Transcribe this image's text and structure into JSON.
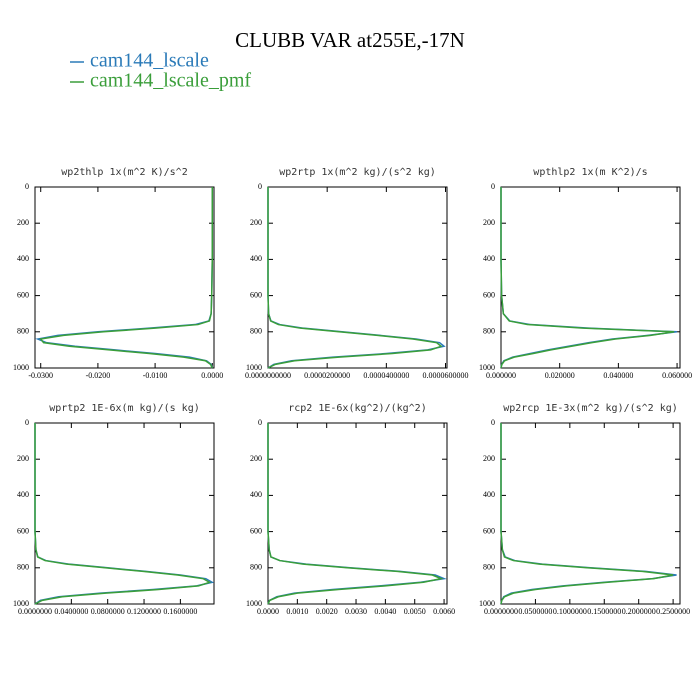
{
  "title": "CLUBB VAR at255E,-17N",
  "chart_data": [
    {
      "type": "line",
      "title": "wp2thlp  1x(m^2 K)/s^2",
      "y": [
        0,
        200,
        400,
        600,
        700,
        740,
        760,
        780,
        800,
        820,
        840,
        860,
        880,
        900,
        920,
        940,
        960,
        980,
        1000
      ],
      "ylim": [
        0,
        1000
      ],
      "y_inverted": true,
      "yticks": [
        0,
        200,
        400,
        600,
        800,
        1000
      ],
      "xlim": [
        -0.031,
        0.0003
      ],
      "xticks": [
        {
          "value": -0.03,
          "label": "-0.0300"
        },
        {
          "value": -0.02,
          "label": "-0.0200"
        },
        {
          "value": -0.01,
          "label": "-0.0100"
        },
        {
          "value": 0,
          "label": "0.0000"
        }
      ],
      "series": [
        {
          "name": "cam144_lscale",
          "color": "#2a7ab8",
          "values": [
            0,
            0,
            0,
            -0.0001,
            -0.0002,
            -0.0006,
            -0.003,
            -0.011,
            -0.02,
            -0.027,
            -0.0305,
            -0.029,
            -0.024,
            -0.017,
            -0.01,
            -0.004,
            -0.001,
            -0.0002,
            0
          ]
        },
        {
          "name": "cam144_lscale_pmf",
          "color": "#3a9e3a",
          "values": [
            0,
            0,
            0,
            -0.0001,
            -0.0002,
            -0.0005,
            -0.0025,
            -0.01,
            -0.019,
            -0.026,
            -0.03,
            -0.0295,
            -0.025,
            -0.018,
            -0.011,
            -0.005,
            -0.0012,
            -0.0003,
            0
          ]
        }
      ]
    },
    {
      "type": "line",
      "title": "wp2rtp  1x(m^2 kg)/(s^2 kg)",
      "y": [
        0,
        200,
        400,
        600,
        700,
        740,
        760,
        780,
        800,
        820,
        840,
        860,
        880,
        900,
        920,
        940,
        960,
        980,
        1000
      ],
      "ylim": [
        0,
        1000
      ],
      "y_inverted": true,
      "yticks": [
        0,
        200,
        400,
        600,
        800,
        1000
      ],
      "xlim": [
        0,
        6.05e-05
      ],
      "xticks": [
        {
          "value": 0,
          "label": "0.0000000000"
        },
        {
          "value": 2e-05,
          "label": "0.0000200000"
        },
        {
          "value": 4e-05,
          "label": "0.0000400000"
        },
        {
          "value": 6e-05,
          "label": "0.0000600000"
        }
      ],
      "series": [
        {
          "name": "cam144_lscale",
          "color": "#2a7ab8",
          "values": [
            0,
            0,
            0,
            0,
            2e-07,
            1e-06,
            4e-06,
            1.2e-05,
            2.5e-05,
            3.8e-05,
            5e-05,
            5.8e-05,
            5.95e-05,
            5.4e-05,
            4e-05,
            2.2e-05,
            8e-06,
            2e-06,
            0
          ]
        },
        {
          "name": "cam144_lscale_pmf",
          "color": "#3a9e3a",
          "values": [
            0,
            0,
            0,
            0,
            2e-07,
            9e-07,
            3.5e-06,
            1.1e-05,
            2.4e-05,
            3.7e-05,
            4.9e-05,
            5.7e-05,
            5.85e-05,
            5.5e-05,
            4.2e-05,
            2.4e-05,
            9e-06,
            2.5e-06,
            0
          ]
        }
      ]
    },
    {
      "type": "line",
      "title": "wpthlp2  1x(m K^2)/s",
      "y": [
        0,
        200,
        400,
        600,
        700,
        740,
        760,
        780,
        800,
        820,
        840,
        860,
        880,
        900,
        920,
        940,
        960,
        980,
        1000
      ],
      "ylim": [
        0,
        1000
      ],
      "y_inverted": true,
      "yticks": [
        0,
        200,
        400,
        600,
        800,
        1000
      ],
      "xlim": [
        0,
        0.061
      ],
      "xticks": [
        {
          "value": 0,
          "label": "0.000000"
        },
        {
          "value": 0.02,
          "label": "0.020000"
        },
        {
          "value": 0.04,
          "label": "0.040000"
        },
        {
          "value": 0.06,
          "label": "0.060000"
        }
      ],
      "series": [
        {
          "name": "cam144_lscale",
          "color": "#2a7ab8",
          "values": [
            0,
            0,
            0,
            0.0002,
            0.0008,
            0.003,
            0.01,
            0.03,
            0.06,
            0.05,
            0.038,
            0.03,
            0.023,
            0.016,
            0.01,
            0.004,
            0.001,
            0.0002,
            0
          ]
        },
        {
          "name": "cam144_lscale_pmf",
          "color": "#3a9e3a",
          "values": [
            0,
            0,
            0,
            0.0002,
            0.0008,
            0.0028,
            0.009,
            0.028,
            0.059,
            0.051,
            0.039,
            0.031,
            0.024,
            0.017,
            0.011,
            0.0045,
            0.0012,
            0.0003,
            0
          ]
        }
      ]
    },
    {
      "type": "line",
      "title": "wprtp2  1E-6x(m kg)/(s kg)",
      "y": [
        0,
        200,
        400,
        600,
        700,
        740,
        760,
        780,
        800,
        820,
        840,
        860,
        880,
        900,
        920,
        940,
        960,
        980,
        1000
      ],
      "ylim": [
        0,
        1000
      ],
      "y_inverted": true,
      "yticks": [
        0,
        200,
        400,
        600,
        800,
        1000
      ],
      "xlim": [
        0,
        0.197
      ],
      "xticks": [
        {
          "value": 0,
          "label": "0.0000000"
        },
        {
          "value": 0.04,
          "label": "0.0400000"
        },
        {
          "value": 0.08,
          "label": "0.0800000"
        },
        {
          "value": 0.12,
          "label": "0.1200000"
        },
        {
          "value": 0.16,
          "label": "0.1600000"
        }
      ],
      "series": [
        {
          "name": "cam144_lscale",
          "color": "#2a7ab8",
          "values": [
            0,
            0,
            0,
            0,
            0.001,
            0.003,
            0.012,
            0.038,
            0.08,
            0.122,
            0.16,
            0.188,
            0.195,
            0.178,
            0.13,
            0.072,
            0.026,
            0.006,
            0
          ]
        },
        {
          "name": "cam144_lscale_pmf",
          "color": "#3a9e3a",
          "values": [
            0,
            0,
            0,
            0,
            0.001,
            0.003,
            0.011,
            0.035,
            0.077,
            0.119,
            0.157,
            0.185,
            0.192,
            0.18,
            0.136,
            0.078,
            0.03,
            0.008,
            0
          ]
        }
      ]
    },
    {
      "type": "line",
      "title": "rcp2  1E-6x(kg^2)/(kg^2)",
      "y": [
        0,
        200,
        400,
        600,
        700,
        740,
        760,
        780,
        800,
        820,
        840,
        860,
        880,
        900,
        920,
        940,
        960,
        980,
        1000
      ],
      "ylim": [
        0,
        1000
      ],
      "y_inverted": true,
      "yticks": [
        0,
        200,
        400,
        600,
        800,
        1000
      ],
      "xlim": [
        0,
        0.0061
      ],
      "xticks": [
        {
          "value": 0,
          "label": "0.0000"
        },
        {
          "value": 0.001,
          "label": "0.0010"
        },
        {
          "value": 0.002,
          "label": "0.0020"
        },
        {
          "value": 0.003,
          "label": "0.0030"
        },
        {
          "value": 0.004,
          "label": "0.0040"
        },
        {
          "value": 0.005,
          "label": "0.0050"
        },
        {
          "value": 0.006,
          "label": "0.0060"
        }
      ],
      "series": [
        {
          "name": "cam144_lscale",
          "color": "#2a7ab8",
          "values": [
            0,
            0,
            0,
            0,
            4e-05,
            0.0001,
            0.0004,
            0.0013,
            0.0028,
            0.0045,
            0.0057,
            0.006,
            0.0052,
            0.0038,
            0.0022,
            0.0009,
            0.0003,
            5e-05,
            0
          ]
        },
        {
          "name": "cam144_lscale_pmf",
          "color": "#3a9e3a",
          "values": [
            0,
            0,
            0,
            0,
            4e-05,
            0.0001,
            0.0004,
            0.0012,
            0.0027,
            0.0044,
            0.0056,
            0.0059,
            0.0053,
            0.004,
            0.0024,
            0.001,
            0.00035,
            6e-05,
            0
          ]
        }
      ]
    },
    {
      "type": "line",
      "title": "wp2rcp  1E-3x(m^2 kg)/(s^2 kg)",
      "y": [
        0,
        200,
        400,
        600,
        700,
        740,
        760,
        780,
        800,
        820,
        840,
        860,
        880,
        900,
        920,
        940,
        960,
        980,
        1000
      ],
      "ylim": [
        0,
        1000
      ],
      "y_inverted": true,
      "yticks": [
        0,
        200,
        400,
        600,
        800,
        1000
      ],
      "xlim": [
        0,
        0.26
      ],
      "xticks": [
        {
          "value": 0,
          "label": "0.0000000"
        },
        {
          "value": 0.05,
          "label": "0.0500000"
        },
        {
          "value": 0.1,
          "label": "0.1000000"
        },
        {
          "value": 0.15,
          "label": "0.1500000"
        },
        {
          "value": 0.2,
          "label": "0.2000000"
        },
        {
          "value": 0.25,
          "label": "0.2500000"
        }
      ],
      "series": [
        {
          "name": "cam144_lscale",
          "color": "#2a7ab8",
          "values": [
            0,
            0,
            0,
            0,
            0.002,
            0.006,
            0.02,
            0.06,
            0.13,
            0.21,
            0.255,
            0.22,
            0.15,
            0.09,
            0.045,
            0.015,
            0.004,
            0.001,
            0
          ]
        },
        {
          "name": "cam144_lscale_pmf",
          "color": "#3a9e3a",
          "values": [
            0,
            0,
            0,
            0,
            0.002,
            0.005,
            0.018,
            0.056,
            0.125,
            0.205,
            0.25,
            0.222,
            0.155,
            0.095,
            0.05,
            0.018,
            0.005,
            0.001,
            0
          ]
        }
      ]
    }
  ]
}
